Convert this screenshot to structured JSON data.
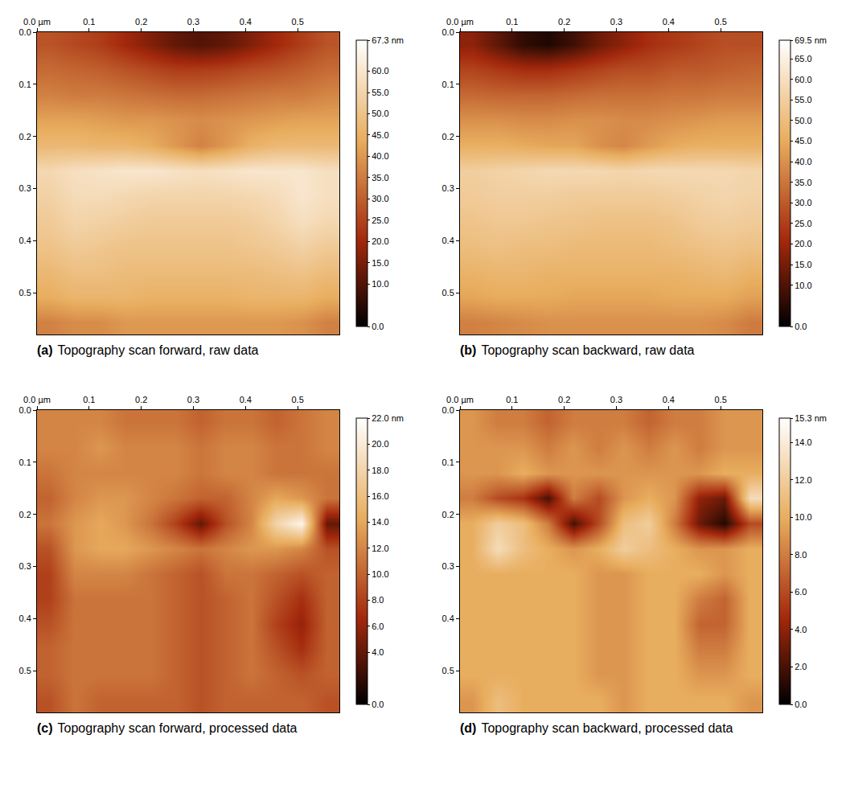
{
  "chart_data": [
    {
      "type": "heatmap",
      "label": "(a)",
      "title": "Topography scan forward, raw data",
      "xlim": [
        0,
        0.58
      ],
      "ylim": [
        0,
        0.58
      ],
      "xticks": [
        {
          "value": 0,
          "label": "0.0 µm"
        },
        0.1,
        0.2,
        0.3,
        0.4,
        0.5
      ],
      "yticks": [
        {
          "value": 0,
          "label": "0.0"
        },
        0.1,
        0.2,
        0.3,
        0.4,
        0.5
      ],
      "zlim": [
        0,
        67.3
      ],
      "zticks": [
        {
          "value": 0,
          "label": "0.0"
        },
        {
          "value": 10,
          "label": "10.0"
        },
        {
          "value": 15,
          "label": "15.0"
        },
        {
          "value": 20,
          "label": "20.0"
        },
        {
          "value": 25,
          "label": "25.0"
        },
        {
          "value": 30,
          "label": "30.0"
        },
        {
          "value": 35,
          "label": "35.0"
        },
        {
          "value": 40,
          "label": "40.0"
        },
        {
          "value": 45,
          "label": "45.0"
        },
        {
          "value": 50,
          "label": "50.0"
        },
        {
          "value": 55,
          "label": "55.0"
        },
        {
          "value": 60,
          "label": "60.0"
        },
        {
          "value": 67.3,
          "label": "67.3 nm"
        }
      ],
      "z": [
        [
          28,
          26,
          24,
          20,
          16,
          12,
          10,
          12,
          16,
          20,
          24,
          28
        ],
        [
          32,
          31,
          30,
          28,
          26,
          24,
          24,
          25,
          27,
          28,
          30,
          32
        ],
        [
          36,
          35,
          35,
          34,
          33,
          32,
          32,
          33,
          34,
          35,
          35,
          37
        ],
        [
          42,
          42,
          41,
          40,
          40,
          39,
          38,
          39,
          40,
          41,
          42,
          42
        ],
        [
          47,
          47,
          46,
          46,
          44,
          40,
          36,
          40,
          45,
          47,
          47,
          47
        ],
        [
          56,
          58,
          59,
          60,
          60,
          59,
          58,
          59,
          60,
          60,
          60,
          58
        ],
        [
          54,
          57,
          57,
          56,
          55,
          55,
          55,
          55,
          56,
          57,
          60,
          58
        ],
        [
          52,
          55,
          54,
          53,
          52,
          52,
          52,
          52,
          53,
          55,
          58,
          56
        ],
        [
          50,
          52,
          51,
          50,
          50,
          50,
          50,
          50,
          51,
          52,
          54,
          52
        ],
        [
          47,
          49,
          49,
          48,
          48,
          48,
          48,
          48,
          48,
          49,
          50,
          48
        ],
        [
          44,
          46,
          46,
          46,
          45,
          45,
          45,
          45,
          46,
          46,
          46,
          44
        ],
        [
          36,
          38,
          38,
          40,
          40,
          40,
          40,
          40,
          40,
          40,
          39,
          36
        ]
      ]
    },
    {
      "type": "heatmap",
      "label": "(b)",
      "title": "Topography scan backward, raw data",
      "xlim": [
        0,
        0.58
      ],
      "ylim": [
        0,
        0.58
      ],
      "xticks": [
        {
          "value": 0,
          "label": "0.0 µm"
        },
        0.1,
        0.2,
        0.3,
        0.4,
        0.5
      ],
      "yticks": [
        {
          "value": 0,
          "label": "0.0"
        },
        0.1,
        0.2,
        0.3,
        0.4,
        0.5
      ],
      "zlim": [
        0,
        69.5
      ],
      "zticks": [
        {
          "value": 0,
          "label": "0.0"
        },
        {
          "value": 10,
          "label": "10.0"
        },
        {
          "value": 15,
          "label": "15.0"
        },
        {
          "value": 20,
          "label": "20.0"
        },
        {
          "value": 25,
          "label": "25.0"
        },
        {
          "value": 30,
          "label": "30.0"
        },
        {
          "value": 35,
          "label": "35.0"
        },
        {
          "value": 40,
          "label": "40.0"
        },
        {
          "value": 45,
          "label": "45.0"
        },
        {
          "value": 50,
          "label": "50.0"
        },
        {
          "value": 55,
          "label": "55.0"
        },
        {
          "value": 60,
          "label": "60.0"
        },
        {
          "value": 65,
          "label": "65.0"
        },
        {
          "value": 69.5,
          "label": "69.5 nm"
        }
      ],
      "z": [
        [
          18,
          12,
          6,
          4,
          8,
          14,
          18,
          22,
          24,
          26,
          28,
          28
        ],
        [
          26,
          24,
          22,
          22,
          24,
          26,
          28,
          28,
          30,
          30,
          31,
          32
        ],
        [
          33,
          32,
          32,
          32,
          33,
          34,
          34,
          34,
          35,
          35,
          36,
          36
        ],
        [
          40,
          40,
          39,
          39,
          40,
          40,
          39,
          39,
          40,
          41,
          42,
          42
        ],
        [
          46,
          46,
          45,
          44,
          44,
          40,
          38,
          42,
          45,
          46,
          46,
          46
        ],
        [
          55,
          56,
          57,
          58,
          58,
          58,
          57,
          58,
          58,
          58,
          58,
          57
        ],
        [
          54,
          55,
          55,
          55,
          54,
          54,
          54,
          54,
          55,
          56,
          57,
          56
        ],
        [
          52,
          53,
          53,
          52,
          52,
          51,
          51,
          51,
          52,
          54,
          55,
          54
        ],
        [
          50,
          51,
          50,
          50,
          49,
          49,
          49,
          49,
          50,
          51,
          52,
          51
        ],
        [
          47,
          48,
          48,
          47,
          47,
          47,
          47,
          47,
          47,
          48,
          49,
          47
        ],
        [
          44,
          45,
          45,
          45,
          44,
          44,
          44,
          44,
          45,
          45,
          45,
          43
        ],
        [
          37,
          38,
          39,
          40,
          40,
          40,
          40,
          40,
          40,
          40,
          39,
          36
        ]
      ]
    },
    {
      "type": "heatmap",
      "label": "(c)",
      "title": "Topography scan forward, processed data",
      "xlim": [
        0,
        0.58
      ],
      "ylim": [
        0,
        0.58
      ],
      "xticks": [
        {
          "value": 0,
          "label": "0.0 µm"
        },
        0.1,
        0.2,
        0.3,
        0.4,
        0.5
      ],
      "yticks": [
        {
          "value": 0,
          "label": "0.0"
        },
        0.1,
        0.2,
        0.3,
        0.4,
        0.5
      ],
      "zlim": [
        0,
        22
      ],
      "zticks": [
        {
          "value": 0,
          "label": "0.0"
        },
        {
          "value": 4,
          "label": "4.0"
        },
        {
          "value": 6,
          "label": "6.0"
        },
        {
          "value": 8,
          "label": "8.0"
        },
        {
          "value": 10,
          "label": "10.0"
        },
        {
          "value": 12,
          "label": "12.0"
        },
        {
          "value": 14,
          "label": "14.0"
        },
        {
          "value": 16,
          "label": "16.0"
        },
        {
          "value": 18,
          "label": "18.0"
        },
        {
          "value": 20,
          "label": "20.0"
        },
        {
          "value": 22,
          "label": "22.0 nm"
        }
      ],
      "z": [
        [
          12,
          12,
          12,
          11,
          11,
          11,
          10,
          11,
          11,
          10,
          11,
          12
        ],
        [
          12,
          12,
          13,
          12,
          12,
          12,
          11,
          12,
          12,
          11,
          11,
          12
        ],
        [
          11,
          12,
          12,
          12,
          12,
          12,
          11,
          12,
          12,
          11,
          11,
          11
        ],
        [
          10,
          12,
          13,
          13,
          12,
          11,
          10,
          10,
          12,
          14,
          13,
          11
        ],
        [
          11,
          13,
          14,
          13,
          11,
          8,
          4,
          9,
          12,
          18,
          21,
          4
        ],
        [
          9,
          13,
          14,
          14,
          13,
          12,
          11,
          12,
          13,
          13,
          12,
          9
        ],
        [
          8,
          12,
          12,
          12,
          11,
          10,
          9,
          11,
          11,
          10,
          9,
          10
        ],
        [
          8,
          11,
          11,
          11,
          11,
          10,
          9,
          10,
          11,
          9,
          7,
          10
        ],
        [
          9,
          11,
          11,
          11,
          11,
          10,
          9,
          10,
          11,
          8,
          6,
          10
        ],
        [
          10,
          11,
          11,
          11,
          11,
          10,
          9,
          10,
          11,
          9,
          7,
          10
        ],
        [
          10,
          11,
          11,
          11,
          11,
          10,
          9,
          10,
          11,
          10,
          9,
          10
        ],
        [
          9,
          11,
          10,
          10,
          10,
          10,
          9,
          10,
          10,
          10,
          10,
          9
        ]
      ]
    },
    {
      "type": "heatmap",
      "label": "(d)",
      "title": "Topography scan backward, processed data",
      "xlim": [
        0,
        0.58
      ],
      "ylim": [
        0,
        0.58
      ],
      "xticks": [
        {
          "value": 0,
          "label": "0.0 µm"
        },
        0.1,
        0.2,
        0.3,
        0.4,
        0.5
      ],
      "yticks": [
        {
          "value": 0,
          "label": "0.0"
        },
        0.1,
        0.2,
        0.3,
        0.4,
        0.5
      ],
      "zlim": [
        0,
        15.3
      ],
      "zticks": [
        {
          "value": 0,
          "label": "0.0"
        },
        {
          "value": 2,
          "label": "2.0"
        },
        {
          "value": 4,
          "label": "4.0"
        },
        {
          "value": 6,
          "label": "6.0"
        },
        {
          "value": 8,
          "label": "8.0"
        },
        {
          "value": 10,
          "label": "10.0"
        },
        {
          "value": 12,
          "label": "12.0"
        },
        {
          "value": 14,
          "label": "14.0"
        },
        {
          "value": 15.3,
          "label": "15.3 nm"
        }
      ],
      "z": [
        [
          9,
          8,
          8,
          7,
          8,
          8,
          8,
          7,
          8,
          8,
          9,
          9
        ],
        [
          9,
          9,
          9,
          8,
          9,
          8,
          9,
          8,
          9,
          8,
          9,
          9
        ],
        [
          9,
          9,
          10,
          9,
          9,
          9,
          9,
          9,
          9,
          9,
          10,
          10
        ],
        [
          8,
          6,
          5,
          2,
          8,
          6,
          9,
          10,
          9,
          4,
          3,
          13
        ],
        [
          10,
          12,
          11,
          8,
          2,
          6,
          11,
          12,
          8,
          3,
          1,
          6
        ],
        [
          10,
          13,
          11,
          10,
          9,
          10,
          12,
          11,
          10,
          9,
          9,
          10
        ],
        [
          10,
          10,
          10,
          10,
          10,
          9,
          9,
          10,
          10,
          10,
          9,
          10
        ],
        [
          10,
          10,
          10,
          10,
          10,
          9,
          9,
          10,
          10,
          8,
          7,
          10
        ],
        [
          10,
          10,
          10,
          10,
          10,
          9,
          9,
          10,
          10,
          7,
          7,
          10
        ],
        [
          10,
          10,
          10,
          10,
          10,
          9,
          9,
          10,
          10,
          8,
          8,
          10
        ],
        [
          10,
          10,
          10,
          10,
          10,
          9,
          9,
          10,
          10,
          9,
          9,
          10
        ],
        [
          9,
          11,
          10,
          10,
          10,
          10,
          9,
          10,
          10,
          10,
          10,
          9
        ]
      ]
    }
  ]
}
